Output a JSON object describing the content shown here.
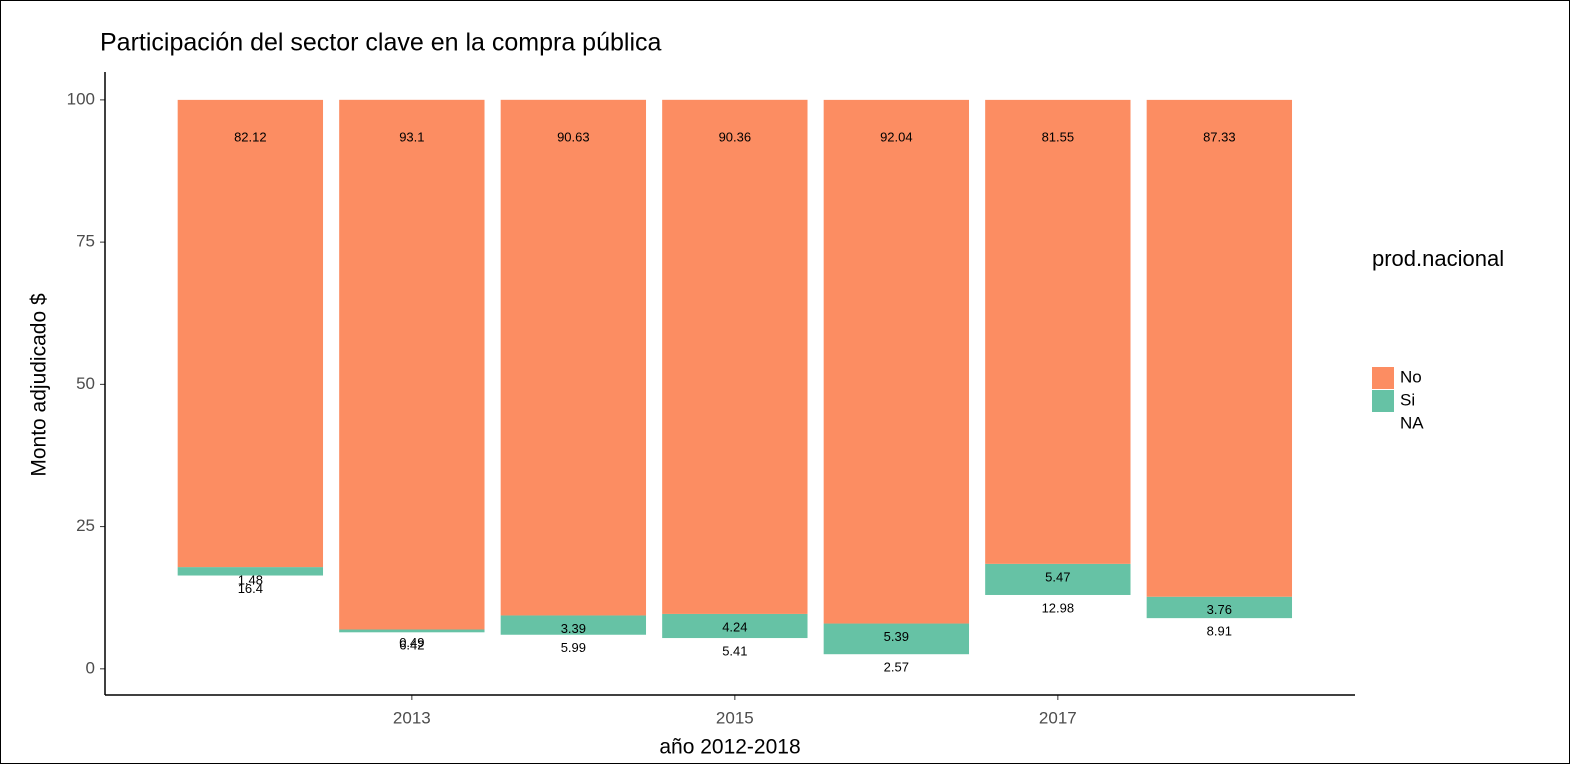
{
  "chart_data": {
    "type": "stacked_bar",
    "title": "Participación del sector clave en la compra pública",
    "x_label": "año 2012-2018",
    "y_label": "Monto adjudicado $",
    "legend_title": "prod.nacional",
    "x": [
      2012,
      2013,
      2014,
      2015,
      2016,
      2017,
      2018
    ],
    "series": [
      {
        "name": "No",
        "color": "#fc8d62",
        "values": [
          82.12,
          93.1,
          90.63,
          90.36,
          92.04,
          81.55,
          87.33
        ]
      },
      {
        "name": "Si",
        "color": "#66c2a5",
        "values": [
          1.48,
          0.49,
          3.39,
          4.24,
          5.39,
          5.47,
          3.76
        ]
      },
      {
        "name": "NA",
        "color": "transparent",
        "values": [
          16.4,
          6.42,
          5.99,
          5.41,
          2.57,
          12.98,
          8.91
        ]
      }
    ],
    "xlim": [
      2011.1,
      2018.84
    ],
    "xticks": [
      2013,
      2015,
      2017
    ],
    "ylim": [
      -4.6,
      104.9
    ],
    "yticks": [
      0,
      25,
      50,
      75,
      100
    ],
    "grid": false,
    "legend": "right"
  }
}
